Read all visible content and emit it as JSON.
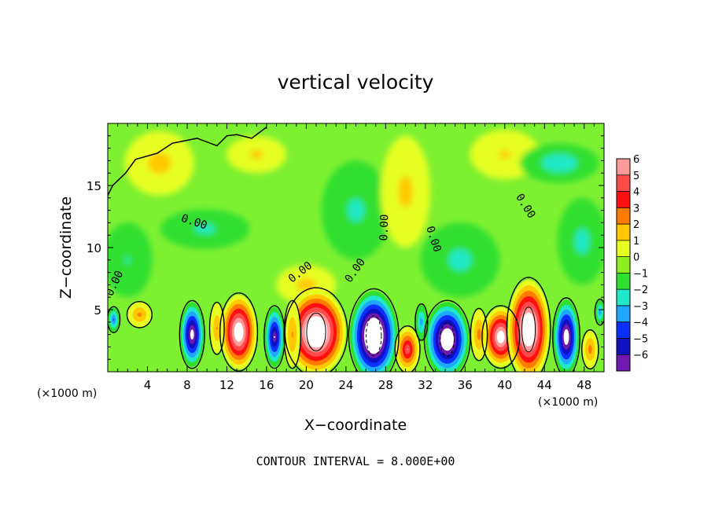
{
  "chart_data": {
    "type": "heatmap",
    "title": "vertical velocity",
    "xlabel": "X−coordinate",
    "ylabel": "Z−coordinate",
    "x_unit_left": "(×1000 m)",
    "x_unit_right": "(×1000 m)",
    "xlim": [
      0,
      50
    ],
    "ylim": [
      0,
      20
    ],
    "x_ticks": [
      4,
      8,
      12,
      16,
      20,
      24,
      28,
      32,
      36,
      40,
      44,
      48
    ],
    "x_tick_labels": [
      "4",
      "8",
      "12",
      "16",
      "20",
      "24",
      "28",
      "32",
      "36",
      "40",
      "44",
      "48"
    ],
    "y_ticks": [
      5,
      10,
      15
    ],
    "y_tick_labels": [
      "5",
      "10",
      "15"
    ],
    "footer": "CONTOUR INTERVAL = 8.000E+00",
    "colorbar": {
      "levels": [
        6,
        5,
        4,
        3,
        2,
        1,
        0,
        -1,
        -2,
        -3,
        -4,
        -5,
        -6
      ],
      "labels": [
        "6",
        "5",
        "4",
        "3",
        "2",
        "1",
        "0",
        "−1",
        "−2",
        "−3",
        "−4",
        "−5",
        "−6"
      ],
      "colors": [
        "#ff9a9a",
        "#ff4a4a",
        "#ff1010",
        "#ff7a00",
        "#ffc800",
        "#e6ff20",
        "#8ff020",
        "#30e030",
        "#20e8c8",
        "#20a8ff",
        "#0a30ff",
        "#1010c0",
        "#7018b0"
      ]
    },
    "background_color": "#7ef032",
    "cells": [
      {
        "x": 8.5,
        "z": 3.0,
        "w": -6.5,
        "rx": 1.2,
        "rz": 2.6
      },
      {
        "x": 13.2,
        "z": 3.2,
        "w": 7.5,
        "rx": 1.8,
        "rz": 3.0
      },
      {
        "x": 16.8,
        "z": 2.8,
        "w": -5.5,
        "rx": 1.0,
        "rz": 2.4
      },
      {
        "x": 21.0,
        "z": 3.2,
        "w": 9.0,
        "rx": 3.0,
        "rz": 3.4
      },
      {
        "x": 26.8,
        "z": 2.9,
        "w": -9.5,
        "rx": 2.4,
        "rz": 3.6
      },
      {
        "x": 30.2,
        "z": 1.8,
        "w": 4.5,
        "rx": 1.2,
        "rz": 1.8
      },
      {
        "x": 34.2,
        "z": 2.6,
        "w": -8.0,
        "rx": 2.2,
        "rz": 3.0
      },
      {
        "x": 39.6,
        "z": 2.8,
        "w": 7.0,
        "rx": 1.8,
        "rz": 2.4
      },
      {
        "x": 42.4,
        "z": 3.4,
        "w": 8.5,
        "rx": 2.1,
        "rz": 4.0
      },
      {
        "x": 46.2,
        "z": 2.8,
        "w": -7.0,
        "rx": 1.3,
        "rz": 3.0
      },
      {
        "x": 48.6,
        "z": 1.8,
        "w": 2.0,
        "rx": 0.8,
        "rz": 1.5
      },
      {
        "x": 3.2,
        "z": 4.6,
        "w": 1.8,
        "rx": 1.2,
        "rz": 1.0
      },
      {
        "x": 0.6,
        "z": 4.2,
        "w": -2.6,
        "rx": 0.6,
        "rz": 1.0
      },
      {
        "x": 11.0,
        "z": 3.5,
        "w": 1.5,
        "rx": 0.7,
        "rz": 2.0
      },
      {
        "x": 18.6,
        "z": 3.0,
        "w": 1.6,
        "rx": 0.8,
        "rz": 2.6
      },
      {
        "x": 31.6,
        "z": 4.0,
        "w": -2.0,
        "rx": 0.6,
        "rz": 1.4
      },
      {
        "x": 37.4,
        "z": 3.0,
        "w": 2.0,
        "rx": 0.8,
        "rz": 2.0
      },
      {
        "x": 49.6,
        "z": 4.8,
        "w": -2.0,
        "rx": 0.5,
        "rz": 1.0
      },
      {
        "x": 5.2,
        "z": 16.8,
        "w": 0.9,
        "rx": 3.5,
        "rz": 2.6
      },
      {
        "x": 9.8,
        "z": 11.5,
        "w": -0.7,
        "rx": 4.5,
        "rz": 1.6
      },
      {
        "x": 15.0,
        "z": 17.5,
        "w": 0.7,
        "rx": 3.0,
        "rz": 1.5
      },
      {
        "x": 25.0,
        "z": 13.0,
        "w": -0.7,
        "rx": 3.5,
        "rz": 4.0
      },
      {
        "x": 30.0,
        "z": 14.5,
        "w": 0.8,
        "rx": 2.5,
        "rz": 4.5
      },
      {
        "x": 35.5,
        "z": 9.0,
        "w": -0.8,
        "rx": 4.0,
        "rz": 3.0
      },
      {
        "x": 40.0,
        "z": 17.5,
        "w": 0.6,
        "rx": 3.5,
        "rz": 2.0
      },
      {
        "x": 45.5,
        "z": 16.8,
        "w": -1.2,
        "rx": 4.0,
        "rz": 1.6
      },
      {
        "x": 47.8,
        "z": 10.5,
        "w": -0.8,
        "rx": 2.5,
        "rz": 3.5
      },
      {
        "x": 20.0,
        "z": 7.0,
        "w": 0.9,
        "rx": 3.0,
        "rz": 1.6
      },
      {
        "x": 2.0,
        "z": 9.0,
        "w": -0.5,
        "rx": 2.5,
        "rz": 3.0
      }
    ],
    "contour_labels": [
      {
        "text": "0.00",
        "x": 1.0,
        "z": 7.0,
        "angle": -65
      },
      {
        "text": "0.00",
        "x": 8.6,
        "z": 11.8,
        "angle": 18
      },
      {
        "text": "0.00",
        "x": 19.6,
        "z": 7.8,
        "angle": -38
      },
      {
        "text": "0.00",
        "x": 25.2,
        "z": 8.0,
        "angle": -55
      },
      {
        "text": "0.00",
        "x": 28.2,
        "z": 11.6,
        "angle": -88
      },
      {
        "text": "0.00",
        "x": 32.5,
        "z": 10.6,
        "angle": 72
      },
      {
        "text": "0.00",
        "x": 41.8,
        "z": 13.2,
        "angle": 58
      }
    ],
    "zero_contours": [
      [
        [
          0.0,
          14.2
        ],
        [
          0.5,
          15.0
        ],
        [
          1.8,
          16.0
        ],
        [
          2.8,
          17.1
        ],
        [
          5.0,
          17.6
        ],
        [
          6.5,
          18.4
        ],
        [
          9.0,
          18.8
        ],
        [
          11.0,
          18.2
        ],
        [
          12.0,
          19.0
        ],
        [
          13.0,
          19.1
        ],
        [
          14.5,
          18.8
        ],
        [
          16.0,
          19.7
        ]
      ]
    ]
  }
}
